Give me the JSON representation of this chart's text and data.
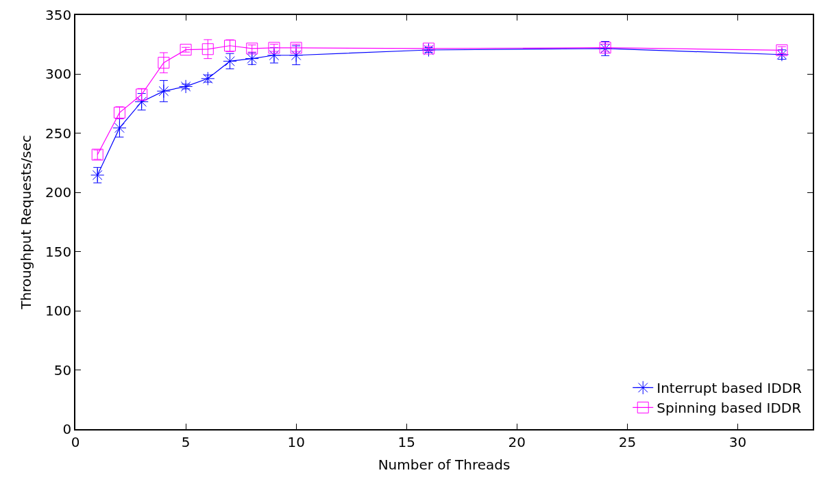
{
  "chart_data": {
    "type": "line",
    "xlabel": "Number of Threads",
    "ylabel": "Throughput Requests/sec",
    "x": [
      1,
      2,
      3,
      4,
      5,
      6,
      7,
      8,
      9,
      10,
      16,
      24,
      32
    ],
    "series": [
      {
        "name": "Interrupt based IDDR",
        "color": "#0000ff",
        "marker": "cross",
        "values": [
          214.7,
          254.6,
          276.7,
          285.7,
          289.6,
          296.3,
          311,
          313.2,
          316,
          316,
          320.5,
          321.7,
          316.6
        ],
        "errors": [
          6.5,
          7.7,
          7,
          9,
          2,
          3,
          6.5,
          5,
          6.5,
          8,
          2,
          6,
          4
        ]
      },
      {
        "name": "Spinning based IDDR",
        "color": "#ff00ff",
        "marker": "square",
        "values": [
          232,
          267.5,
          282.9,
          309.7,
          320.7,
          321.2,
          324.1,
          321.7,
          322.3,
          322.3,
          321.7,
          322.4,
          320.3
        ],
        "errors": [
          4,
          5,
          5,
          8.5,
          2,
          8,
          5,
          3,
          3,
          3,
          2,
          3,
          3
        ]
      }
    ],
    "xlim": [
      0,
      33.4
    ],
    "xticks": [
      0,
      5,
      10,
      15,
      20,
      25,
      30
    ],
    "ylim": [
      0,
      350
    ],
    "yticks": [
      0,
      50,
      100,
      150,
      200,
      250,
      300,
      350
    ],
    "legend": "bottom right"
  }
}
